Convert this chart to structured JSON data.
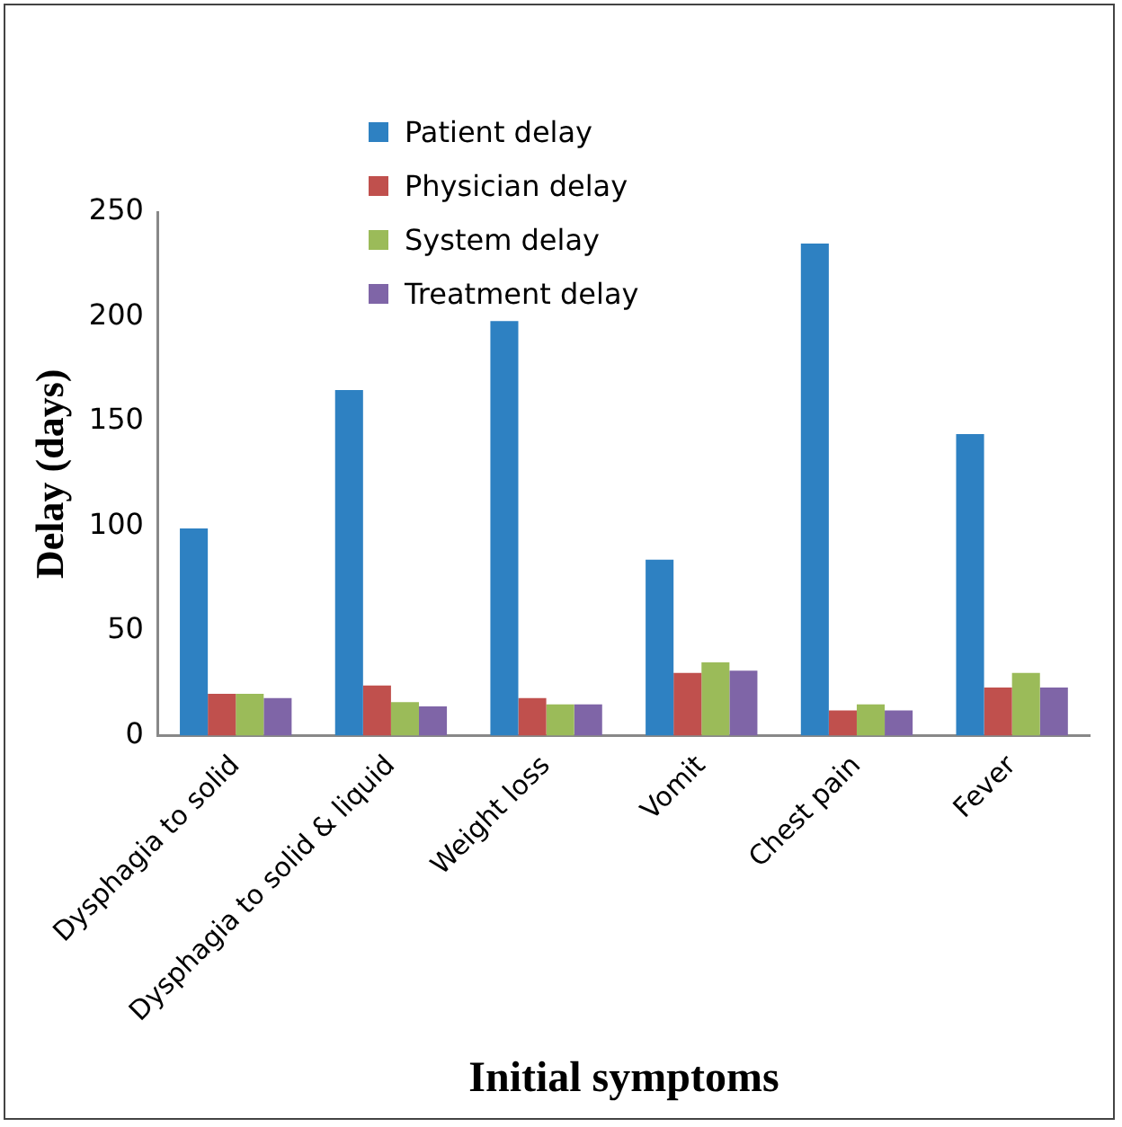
{
  "chart_data": {
    "type": "bar",
    "xlabel": "Initial symptoms",
    "ylabel": "Delay (days)",
    "categories": [
      "Dysphagia to solid",
      "Dysphagia to solid & liquid",
      "Weight loss",
      "Vomit",
      "Chest pain",
      "Fever"
    ],
    "series": [
      {
        "name": "Patient delay",
        "color": "#2e81c2",
        "values": [
          99,
          165,
          198,
          84,
          235,
          144
        ]
      },
      {
        "name": "Physician delay",
        "color": "#c0504d",
        "values": [
          20,
          24,
          18,
          30,
          12,
          23
        ]
      },
      {
        "name": "System delay",
        "color": "#9bbb59",
        "values": [
          20,
          16,
          15,
          35,
          15,
          30
        ]
      },
      {
        "name": "Treatment delay",
        "color": "#7f65a7",
        "values": [
          18,
          14,
          15,
          31,
          12,
          23
        ]
      }
    ],
    "ylim": [
      0,
      250
    ],
    "yticks": [
      0,
      50,
      100,
      150,
      200,
      250
    ],
    "grid": false,
    "legend": "top"
  }
}
